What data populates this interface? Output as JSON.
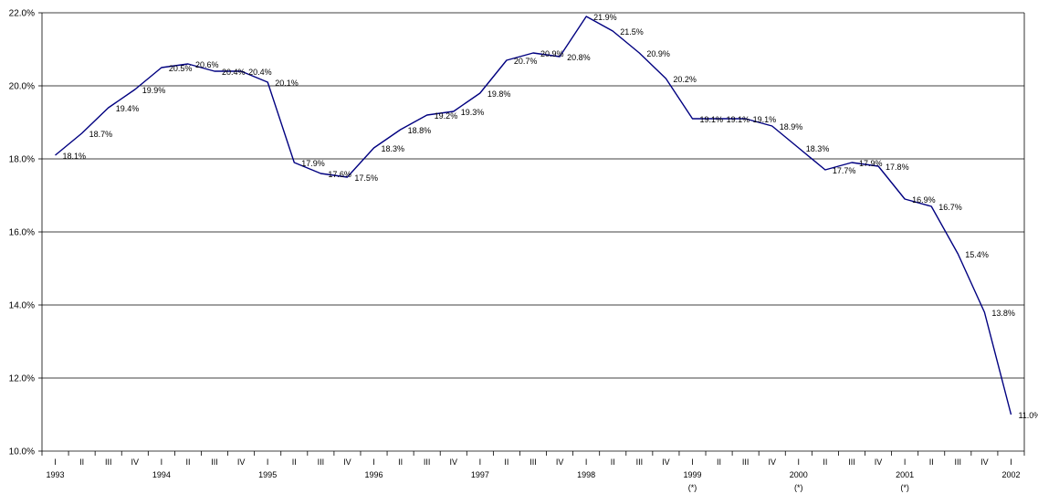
{
  "chart_data": {
    "type": "line",
    "title": "",
    "xlabel": "",
    "ylabel": "",
    "ylim": [
      10,
      22
    ],
    "y_ticks": [
      "10.0%",
      "12.0%",
      "14.0%",
      "16.0%",
      "18.0%",
      "20.0%",
      "22.0%"
    ],
    "grid": "horizontal",
    "line_color": "#000080",
    "x_ticks": [
      "I",
      "II",
      "III",
      "IV",
      "I",
      "II",
      "III",
      "IV",
      "I",
      "II",
      "III",
      "IV",
      "I",
      "II",
      "III",
      "IV",
      "I",
      "II",
      "III",
      "IV",
      "I",
      "II",
      "III",
      "IV",
      "I",
      "II",
      "III",
      "IV",
      "I",
      "II",
      "III",
      "IV",
      "I",
      "II",
      "III",
      "IV",
      "I"
    ],
    "years": [
      "1993",
      "1994",
      "1995",
      "1996",
      "1997",
      "1998",
      "1999",
      "2000",
      "2001",
      "2002"
    ],
    "year_notes": [
      "",
      "",
      "",
      "",
      "",
      "",
      "(*)",
      "(*)",
      "(*)",
      ""
    ],
    "values": [
      18.1,
      18.7,
      19.4,
      19.9,
      20.5,
      20.6,
      20.4,
      20.4,
      20.1,
      17.9,
      17.6,
      17.5,
      18.3,
      18.8,
      19.2,
      19.3,
      19.8,
      20.7,
      20.9,
      20.8,
      21.9,
      21.5,
      20.9,
      20.2,
      19.1,
      19.1,
      19.1,
      18.9,
      18.3,
      17.7,
      17.9,
      17.8,
      16.9,
      16.7,
      15.4,
      13.8,
      11.0
    ],
    "data_labels": [
      "18.1%",
      "18.7%",
      "19.4%",
      "19.9%",
      "20.5%",
      "20.6%",
      "20.4%",
      "20.4%",
      "20.1%",
      "17.9%",
      "17.6%",
      "17.5%",
      "18.3%",
      "18.8%",
      "19.2%",
      "19.3%",
      "19.8%",
      "20.7%",
      "20.9%",
      "20.8%",
      "21.9%",
      "21.5%",
      "20.9%",
      "20.2%",
      "19.1%",
      "19.1%",
      "19.1%",
      "18.9%",
      "18.3%",
      "17.7%",
      "17.9%",
      "17.8%",
      "16.9%",
      "16.7%",
      "15.4%",
      "13.8%",
      "11.0%"
    ]
  }
}
